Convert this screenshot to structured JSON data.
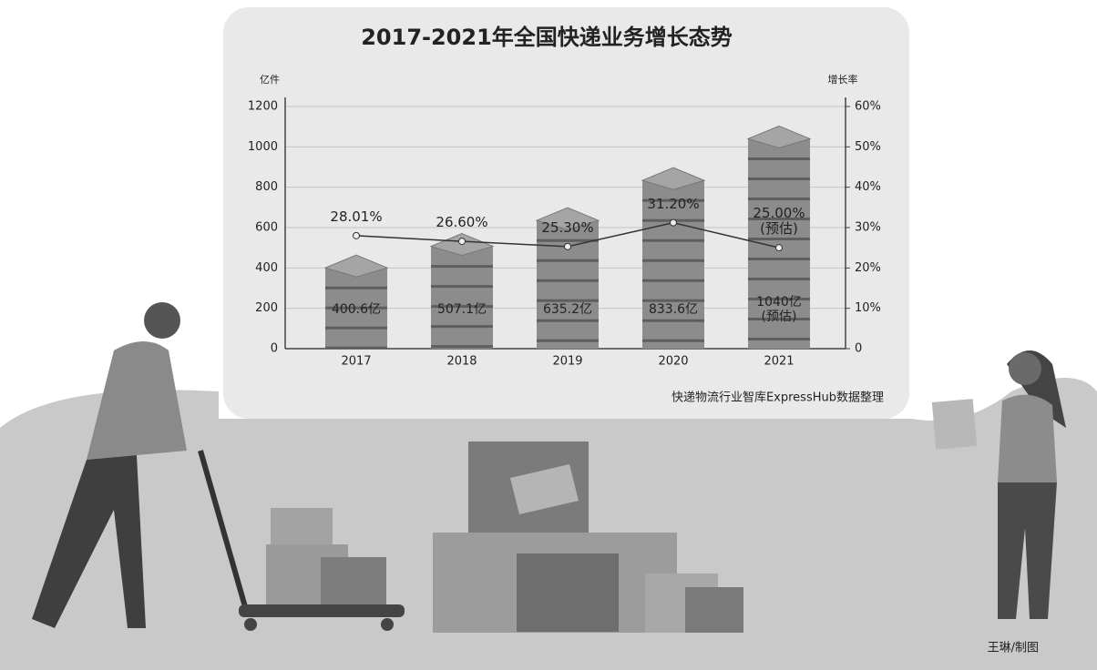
{
  "chart_data": {
    "type": "combo",
    "title": "2017-2021年全国快递业务增长态势",
    "y_label": "亿件",
    "y2_label": "增长率",
    "categories": [
      "2017",
      "2018",
      "2019",
      "2020",
      "2021"
    ],
    "series": [
      {
        "type": "bar",
        "color": "#8c8c8c",
        "values": [
          400.6,
          507.1,
          635.2,
          833.6,
          1040
        ],
        "value_labels": [
          "400.6亿",
          "507.1亿",
          "635.2亿",
          "833.6亿",
          "1040亿\n(预估)"
        ]
      },
      {
        "type": "line",
        "axis": "y2",
        "color": "#333333",
        "values": [
          28.01,
          26.6,
          25.3,
          31.2,
          25.0
        ],
        "value_labels": [
          "28.01%",
          "26.60%",
          "25.30%",
          "31.20%",
          "25.00%\n(预估)"
        ]
      }
    ],
    "ylim": [
      0,
      1200
    ],
    "yticks": [
      0,
      200,
      400,
      600,
      800,
      1000,
      1200
    ],
    "y2lim": [
      0,
      60
    ],
    "y2ticks": [
      0,
      {
        "value": 10,
        "label": "10%"
      },
      {
        "value": 20,
        "label": "20%"
      },
      {
        "value": 30,
        "label": "30%"
      },
      {
        "value": 40,
        "label": "40%"
      },
      {
        "value": 50,
        "label": "50%"
      },
      {
        "value": 60,
        "label": "60%"
      }
    ],
    "grid": true,
    "source": "快递物流行业智库ExpressHub数据整理",
    "credit": "王琳/制图"
  }
}
